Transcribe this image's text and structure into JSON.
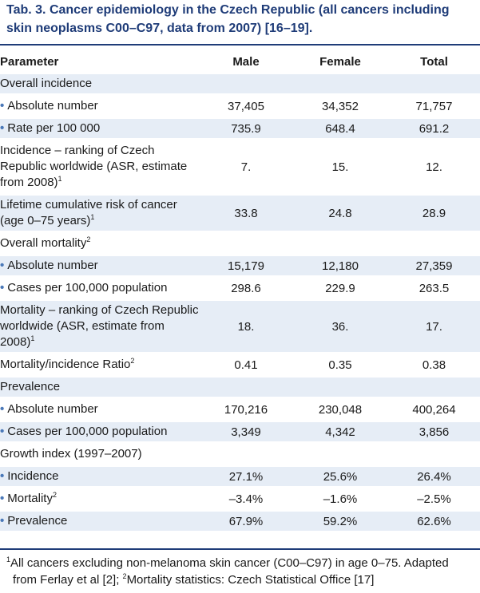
{
  "title": "Tab. 3. Cancer epidemiology in the Czech Republic (all cancers including skin neoplasms C00–C97, data from 2007) [16–19].",
  "header": {
    "parameter": "Parameter",
    "male": "Male",
    "female": "Female",
    "total": "Total"
  },
  "rows": [
    {
      "label": "Overall incidence",
      "male": "",
      "female": "",
      "total": ""
    },
    {
      "label": "Absolute number",
      "male": "37,405",
      "female": "34,352",
      "total": "71,757"
    },
    {
      "label": "Rate per 100 000",
      "male": "735.9",
      "female": "648.4",
      "total": "691.2"
    },
    {
      "label": "Incidence – ranking of Czech Republic worldwide (ASR, estimate from 2008)",
      "sup": "1",
      "male": "7.",
      "female": "15.",
      "total": "12."
    },
    {
      "label": "Lifetime cumulative risk of cancer (age 0–75 years)",
      "sup": "1",
      "male": "33.8",
      "female": "24.8",
      "total": "28.9"
    },
    {
      "label": "Overall mortality",
      "sup": "2",
      "male": "",
      "female": "",
      "total": ""
    },
    {
      "label": "Absolute number",
      "male": "15,179",
      "female": "12,180",
      "total": "27,359"
    },
    {
      "label": "Cases per 100,000 population",
      "male": "298.6",
      "female": "229.9",
      "total": "263.5"
    },
    {
      "label": "Mortality – ranking of Czech Republic worldwide (ASR, estimate from 2008)",
      "sup": "1",
      "male": "18.",
      "female": "36.",
      "total": "17."
    },
    {
      "label": "Mortality/incidence Ratio",
      "sup": "2",
      "male": "0.41",
      "female": "0.35",
      "total": "0.38"
    },
    {
      "label": "Prevalence",
      "male": "",
      "female": "",
      "total": ""
    },
    {
      "label": "Absolute number",
      "male": "170,216",
      "female": "230,048",
      "total": "400,264"
    },
    {
      "label": "Cases per 100,000 population",
      "male": "3,349",
      "female": "4,342",
      "total": "3,856"
    },
    {
      "label": "Growth index (1997–2007)",
      "male": "",
      "female": "",
      "total": ""
    },
    {
      "label": "Incidence",
      "male": "27.1%",
      "female": "25.6%",
      "total": "26.4%"
    },
    {
      "label": "Mortality",
      "sup": "2",
      "male": "–3.4%",
      "female": "–1.6%",
      "total": "–2.5%"
    },
    {
      "label": "Prevalence",
      "male": "67.9%",
      "female": "59.2%",
      "total": "62.6%"
    }
  ],
  "footnote": {
    "sup1": "1",
    "line1": "All cancers excluding non-melanoma skin cancer (C00–C97) in age 0–75. Adapted",
    "line2_pre": "from Ferlay et al [2]; ",
    "sup2": "2",
    "line2_post": "Mortality statistics: Czech Statistical Office [17]"
  },
  "bullet": "•"
}
